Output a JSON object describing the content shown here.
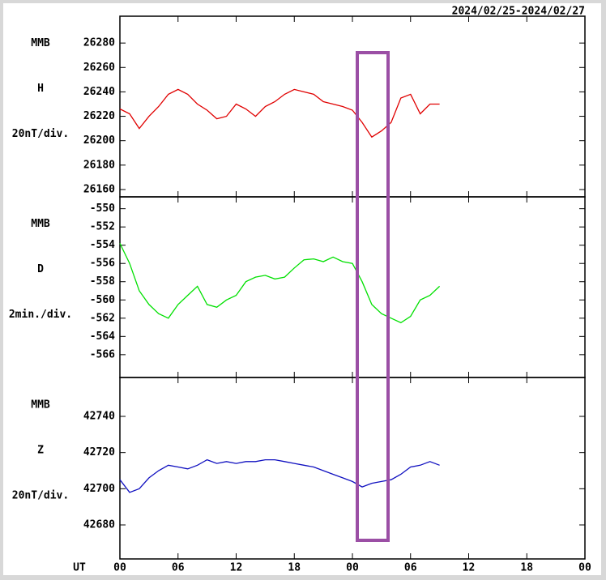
{
  "chart_data": [
    {
      "type": "line",
      "title": "2024/02/25-2024/02/27",
      "station": "MMB",
      "component": "H",
      "scale": "20nT/div.",
      "xlim": [
        0,
        48
      ],
      "x": [
        0,
        1,
        2,
        3,
        4,
        5,
        6,
        7,
        8,
        9,
        10,
        11,
        12,
        13,
        14,
        15,
        16,
        17,
        18,
        19,
        20,
        21,
        22,
        23,
        24,
        25,
        26,
        27,
        28,
        29,
        30,
        31,
        32,
        33
      ],
      "series": [
        {
          "name": "H",
          "color": "#e00000",
          "values": [
            26226,
            26222,
            26210,
            26220,
            26228,
            26238,
            26242,
            26238,
            26230,
            26225,
            26218,
            26220,
            26230,
            26226,
            26220,
            26228,
            26232,
            26238,
            26242,
            26240,
            26238,
            26232,
            26230,
            26228,
            26225,
            26215,
            26203,
            26208,
            26215,
            26235,
            26238,
            26222,
            26230,
            26230
          ]
        }
      ],
      "ylim": [
        26154,
        26302
      ],
      "yticks": [
        26160,
        26180,
        26200,
        26220,
        26240,
        26260,
        26280
      ]
    },
    {
      "type": "line",
      "station": "MMB",
      "component": "D",
      "scale": "2min./div.",
      "xlim": [
        0,
        48
      ],
      "x": [
        0,
        1,
        2,
        3,
        4,
        5,
        6,
        7,
        8,
        9,
        10,
        11,
        12,
        13,
        14,
        15,
        16,
        17,
        18,
        19,
        20,
        21,
        22,
        23,
        24,
        25,
        26,
        27,
        28,
        29,
        30,
        31,
        32,
        33
      ],
      "series": [
        {
          "name": "D",
          "color": "#00e000",
          "values": [
            -553.8,
            -556,
            -559,
            -560.5,
            -561.5,
            -562,
            -560.5,
            -559.5,
            -558.5,
            -560.5,
            -560.8,
            -560,
            -559.5,
            -558,
            -557.5,
            -557.3,
            -557.7,
            -557.5,
            -556.5,
            -555.6,
            -555.5,
            -555.8,
            -555.3,
            -555.8,
            -556,
            -558,
            -560.5,
            -561.5,
            -562,
            -562.5,
            -561.8,
            -560,
            -559.5,
            -558.5
          ]
        }
      ],
      "ylim": [
        -568.5,
        -548.7
      ],
      "yticks": [
        -566,
        -564,
        -562,
        -560,
        -558,
        -556,
        -554,
        -552,
        -550
      ]
    },
    {
      "type": "line",
      "station": "MMB",
      "component": "Z",
      "scale": "20nT/div.",
      "xlabel": "UT",
      "xlim": [
        0,
        48
      ],
      "xticks": [
        {
          "value": 0,
          "label": "00"
        },
        {
          "value": 6,
          "label": "06"
        },
        {
          "value": 12,
          "label": "12"
        },
        {
          "value": 18,
          "label": "18"
        },
        {
          "value": 24,
          "label": "00"
        },
        {
          "value": 30,
          "label": "06"
        },
        {
          "value": 36,
          "label": "12"
        },
        {
          "value": 42,
          "label": "18"
        },
        {
          "value": 48,
          "label": "00"
        }
      ],
      "x": [
        0,
        1,
        2,
        3,
        4,
        5,
        6,
        7,
        8,
        9,
        10,
        11,
        12,
        13,
        14,
        15,
        16,
        17,
        18,
        19,
        20,
        21,
        22,
        23,
        24,
        25,
        26,
        27,
        28,
        29,
        30,
        31,
        32,
        33
      ],
      "series": [
        {
          "name": "Z",
          "color": "#1010c0",
          "values": [
            42705,
            42698,
            42700,
            42706,
            42710,
            42713,
            42712,
            42711,
            42713,
            42716,
            42714,
            42715,
            42714,
            42715,
            42715,
            42716,
            42716,
            42715,
            42714,
            42713,
            42712,
            42710,
            42708,
            42706,
            42704,
            42701,
            42703,
            42704,
            42705,
            42708,
            42712,
            42713,
            42715,
            42713
          ]
        }
      ],
      "ylim": [
        42661.2,
        42761.5
      ],
      "yticks": [
        42680,
        42700,
        42720,
        42740
      ]
    }
  ]
}
